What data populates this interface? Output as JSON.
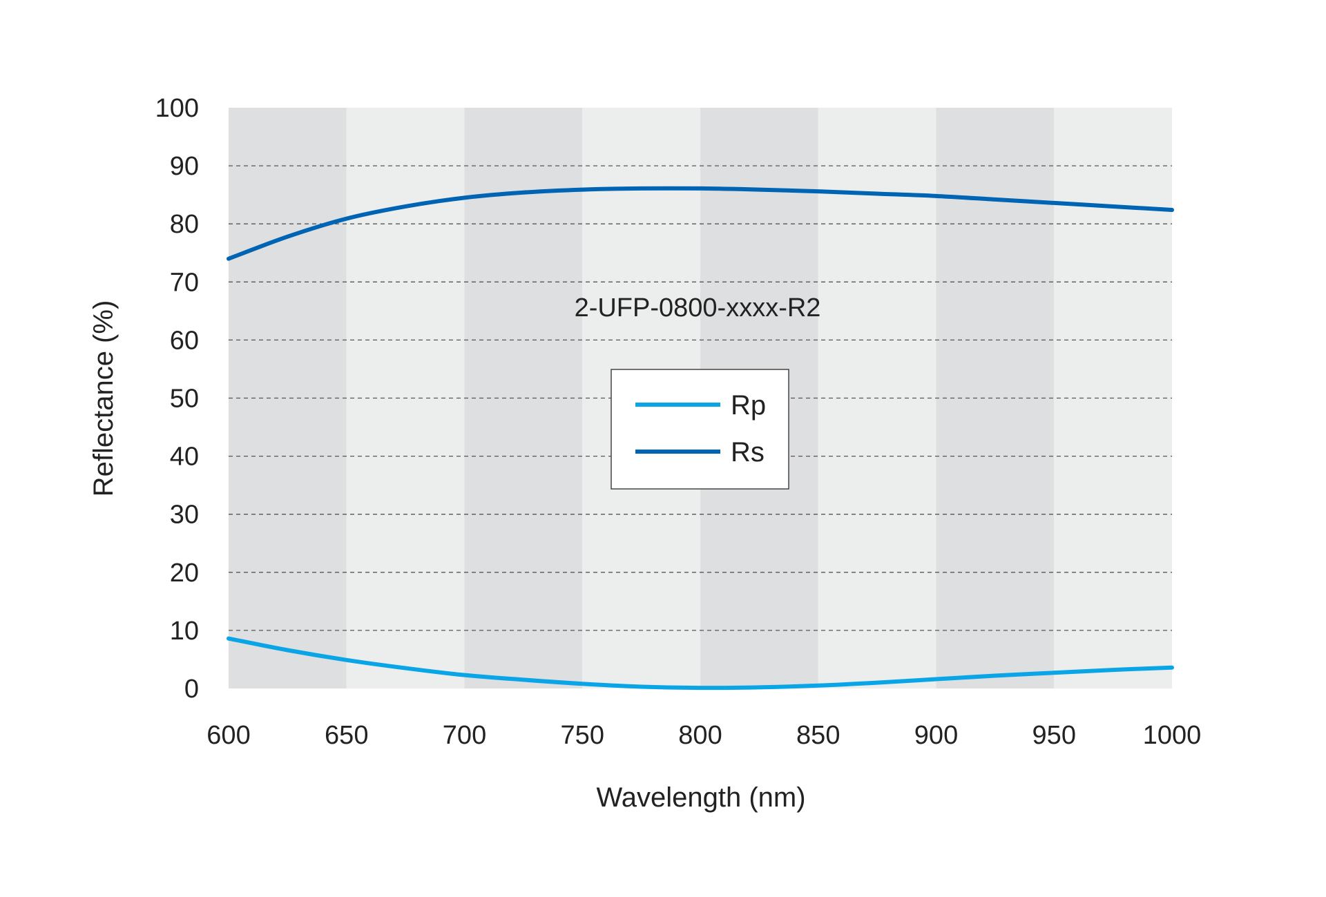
{
  "chart_data": {
    "type": "line",
    "title": "",
    "annotation": "2-UFP-0800-xxxx-R2",
    "xlabel": "Wavelength (nm)",
    "ylabel": "Reflectance (%)",
    "xlim": [
      600,
      1000
    ],
    "ylim": [
      0,
      100
    ],
    "x_ticks": [
      600,
      650,
      700,
      750,
      800,
      850,
      900,
      950,
      1000
    ],
    "y_ticks": [
      0,
      10,
      20,
      30,
      40,
      50,
      60,
      70,
      80,
      90,
      100
    ],
    "grid": "horizontal dashed",
    "background": "alternating vertical bands",
    "legend": {
      "placement": "center",
      "entries": [
        "Rp",
        "Rs"
      ]
    },
    "series": [
      {
        "name": "Rp",
        "color": "#0aa5e6",
        "x": [
          600,
          625,
          650,
          675,
          700,
          725,
          750,
          775,
          800,
          825,
          850,
          875,
          900,
          925,
          950,
          975,
          1000
        ],
        "y": [
          8.6,
          6.6,
          4.9,
          3.5,
          2.3,
          1.5,
          0.8,
          0.3,
          0.1,
          0.2,
          0.5,
          1.0,
          1.6,
          2.2,
          2.7,
          3.2,
          3.6
        ]
      },
      {
        "name": "Rs",
        "color": "#0064b4",
        "x": [
          600,
          625,
          650,
          675,
          700,
          725,
          750,
          775,
          800,
          825,
          850,
          875,
          900,
          925,
          950,
          975,
          1000
        ],
        "y": [
          74.0,
          77.8,
          80.9,
          83.0,
          84.5,
          85.4,
          85.9,
          86.1,
          86.1,
          85.9,
          85.6,
          85.2,
          84.8,
          84.2,
          83.6,
          83.0,
          82.4
        ]
      }
    ]
  },
  "colors": {
    "band_dark": "#dedfe0",
    "band_light": "#eceeed",
    "grid": "#555555",
    "text": "#222222"
  }
}
